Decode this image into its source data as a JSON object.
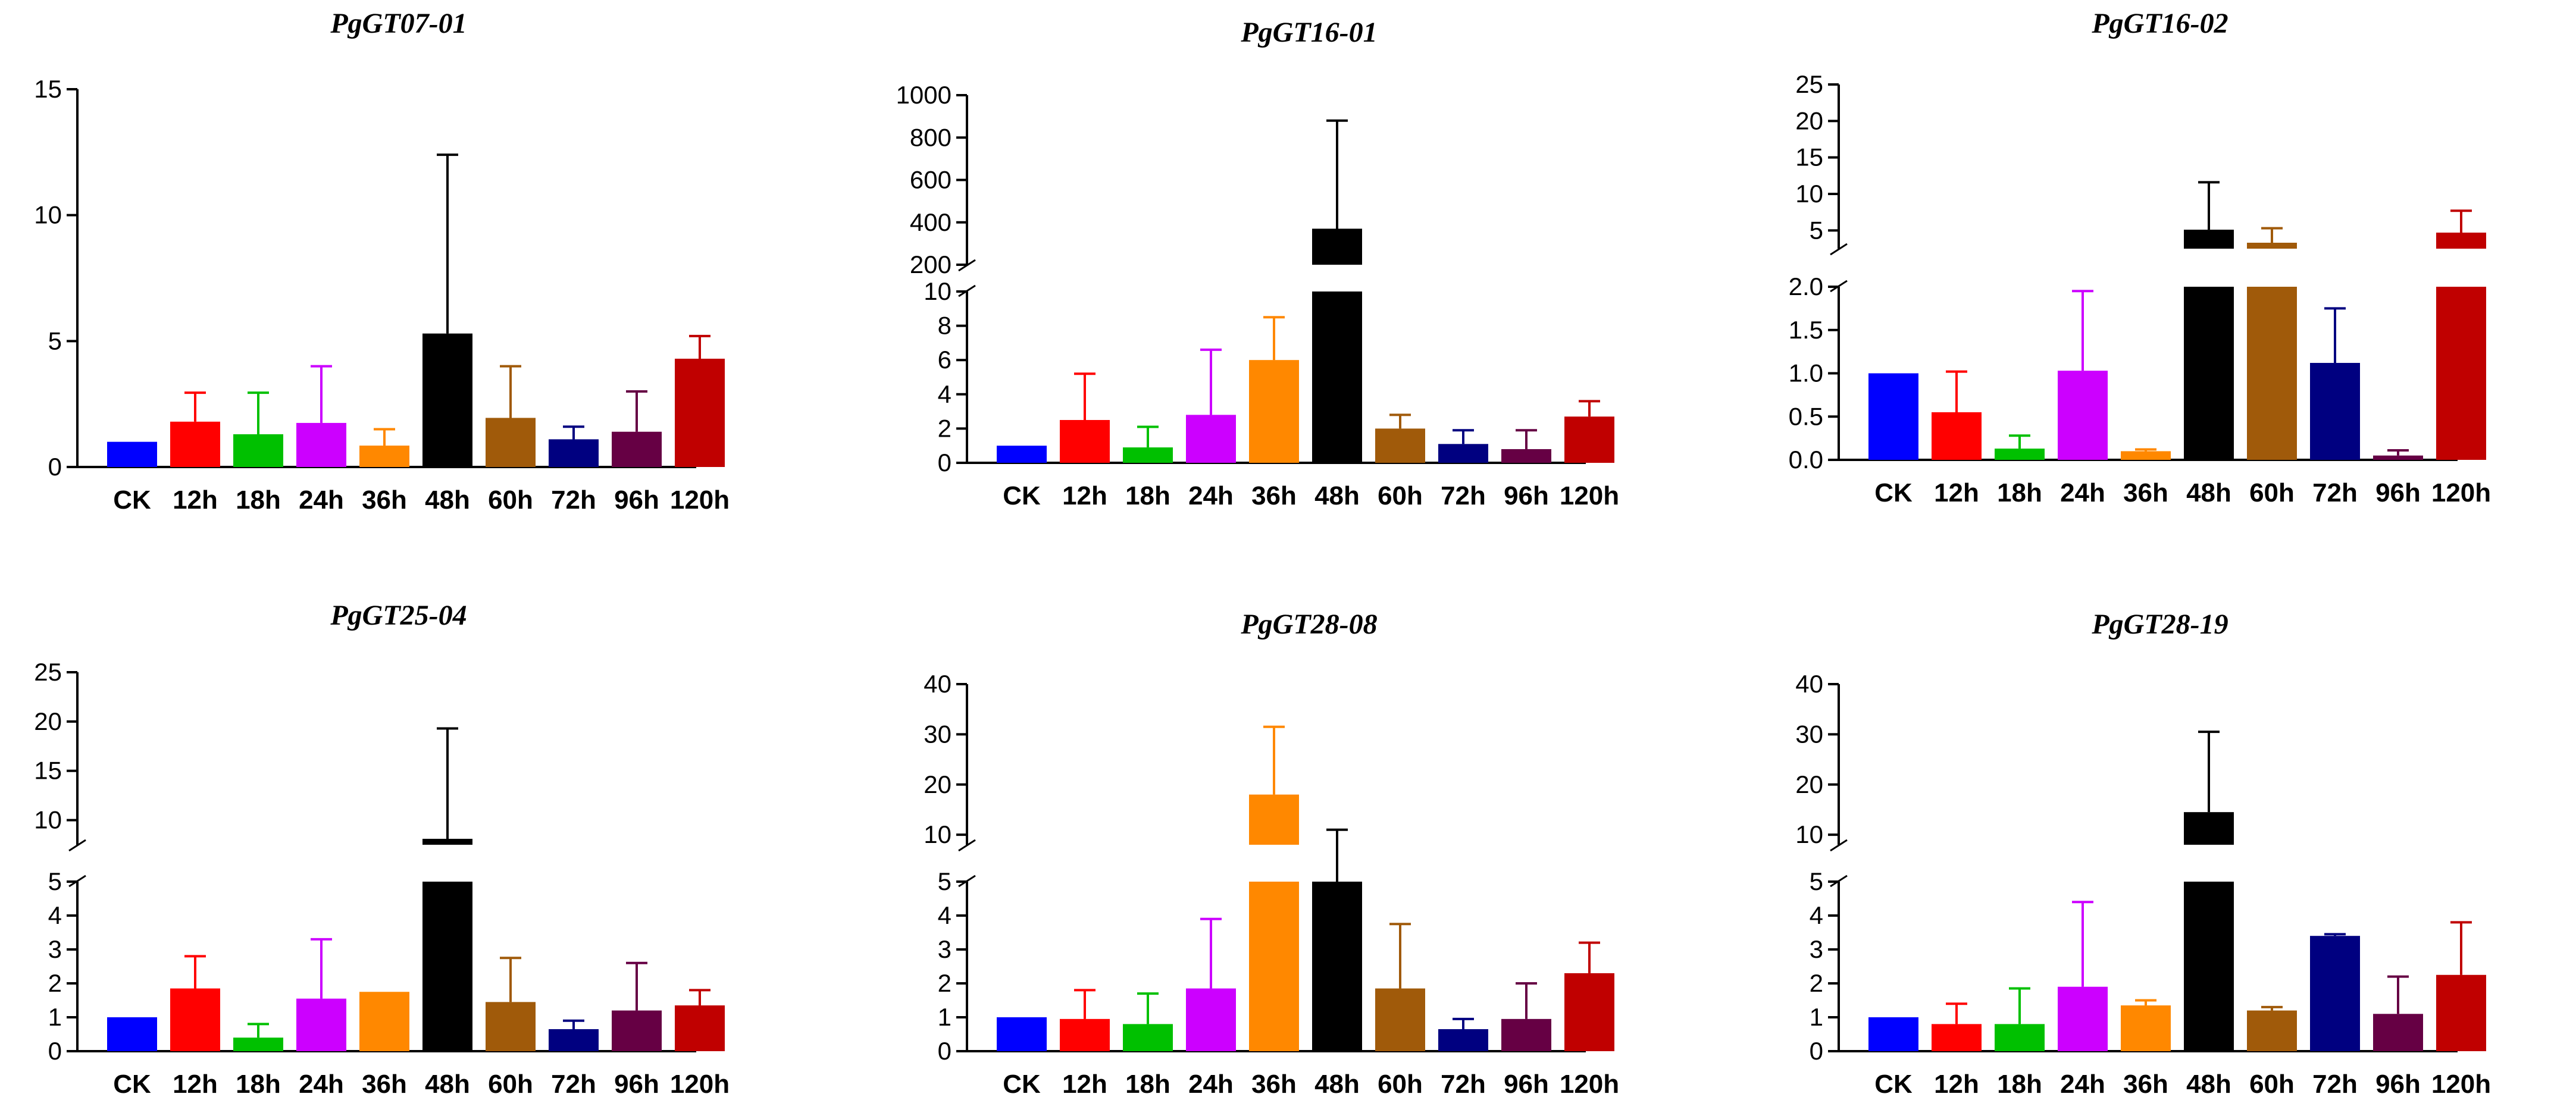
{
  "charts": [
    {
      "chart_data": {
        "type": "bar",
        "title": "PgGT07-01",
        "categories": [
          "CK",
          "12h",
          "18h",
          "24h",
          "36h",
          "48h",
          "60h",
          "72h",
          "96h",
          "120h"
        ],
        "values": [
          1.0,
          1.8,
          1.3,
          1.75,
          0.85,
          5.3,
          1.95,
          1.1,
          1.4,
          4.3
        ],
        "errors": [
          0,
          1.15,
          1.65,
          2.25,
          0.65,
          7.1,
          2.05,
          0.5,
          1.6,
          0.9
        ],
        "colors": [
          "#0000ff",
          "#ff0000",
          "#00c000",
          "#cc00ff",
          "#ff8800",
          "#000000",
          "#a05a0a",
          "#000080",
          "#660044",
          "#c00000"
        ],
        "xlabel": "",
        "ylabel": "",
        "segments": [
          {
            "range": [
              0,
              15
            ],
            "ticks": [
              0,
              5,
              10,
              15
            ],
            "labels": [
              "0",
              "5",
              "10",
              "15"
            ]
          }
        ]
      }
    },
    {
      "chart_data": {
        "type": "bar",
        "title": "PgGT16-01",
        "categories": [
          "CK",
          "12h",
          "18h",
          "24h",
          "36h",
          "48h",
          "60h",
          "72h",
          "96h",
          "120h"
        ],
        "values": [
          1.0,
          2.5,
          0.9,
          2.8,
          6.0,
          370,
          2.0,
          1.1,
          0.8,
          2.7
        ],
        "errors": [
          0,
          2.7,
          1.2,
          3.8,
          2.5,
          510,
          0.8,
          0.8,
          1.1,
          0.9
        ],
        "colors": [
          "#0000ff",
          "#ff0000",
          "#00c000",
          "#cc00ff",
          "#ff8800",
          "#000000",
          "#a05a0a",
          "#000080",
          "#660044",
          "#c00000"
        ],
        "xlabel": "",
        "ylabel": "",
        "segments": [
          {
            "range": [
              0,
              10
            ],
            "ticks": [
              0,
              2,
              4,
              6,
              8,
              10
            ],
            "labels": [
              "0",
              "2",
              "4",
              "6",
              "8",
              "10"
            ]
          },
          {
            "range": [
              200,
              1000
            ],
            "ticks": [
              200,
              400,
              600,
              800,
              1000
            ],
            "labels": [
              "200",
              "400",
              "600",
              "800",
              "1000"
            ]
          }
        ]
      }
    },
    {
      "chart_data": {
        "type": "bar",
        "title": "PgGT16-02",
        "categories": [
          "CK",
          "12h",
          "18h",
          "24h",
          "36h",
          "48h",
          "60h",
          "72h",
          "96h",
          "120h"
        ],
        "values": [
          1.0,
          0.55,
          0.13,
          1.03,
          0.1,
          5.1,
          3.3,
          1.12,
          0.05,
          4.7
        ],
        "errors": [
          0,
          0.47,
          0.15,
          0.92,
          0.02,
          6.5,
          2.0,
          0.63,
          0.06,
          3.0
        ],
        "colors": [
          "#0000ff",
          "#ff0000",
          "#00c000",
          "#cc00ff",
          "#ff8800",
          "#000000",
          "#a05a0a",
          "#000080",
          "#660044",
          "#c00000"
        ],
        "xlabel": "",
        "ylabel": "",
        "segments": [
          {
            "range": [
              0,
              2
            ],
            "ticks": [
              0,
              0.5,
              1,
              1.5,
              2
            ],
            "labels": [
              "0.0",
              "0.5",
              "1.0",
              "1.5",
              "2.0"
            ]
          },
          {
            "range": [
              2.5,
              25
            ],
            "ticks": [
              5,
              10,
              15,
              20,
              25
            ],
            "labels": [
              "5",
              "10",
              "15",
              "20",
              "25"
            ]
          }
        ]
      }
    },
    {
      "chart_data": {
        "type": "bar",
        "title": "PgGT25-04",
        "categories": [
          "CK",
          "12h",
          "18h",
          "24h",
          "36h",
          "48h",
          "60h",
          "72h",
          "96h",
          "120h"
        ],
        "values": [
          1.0,
          1.85,
          0.4,
          1.55,
          1.75,
          8.0,
          1.45,
          0.65,
          1.2,
          1.35
        ],
        "errors": [
          0,
          0.95,
          0.4,
          1.75,
          0,
          11.3,
          1.3,
          0.25,
          1.4,
          0.45
        ],
        "colors": [
          "#0000ff",
          "#ff0000",
          "#00c000",
          "#cc00ff",
          "#ff8800",
          "#000000",
          "#a05a0a",
          "#000080",
          "#660044",
          "#c00000"
        ],
        "xlabel": "",
        "ylabel": "",
        "segments": [
          {
            "range": [
              0,
              5
            ],
            "ticks": [
              0,
              1,
              2,
              3,
              4,
              5
            ],
            "labels": [
              "0",
              "1",
              "2",
              "3",
              "4",
              "5"
            ]
          },
          {
            "range": [
              7.5,
              25
            ],
            "ticks": [
              10,
              15,
              20,
              25
            ],
            "labels": [
              "10",
              "15",
              "20",
              "25"
            ]
          }
        ]
      }
    },
    {
      "chart_data": {
        "type": "bar",
        "title": "PgGT28-08",
        "categories": [
          "CK",
          "12h",
          "18h",
          "24h",
          "36h",
          "48h",
          "60h",
          "72h",
          "96h",
          "120h"
        ],
        "values": [
          1.0,
          0.95,
          0.8,
          1.85,
          18.0,
          5.0,
          1.85,
          0.65,
          0.95,
          2.3
        ],
        "errors": [
          0,
          0.85,
          0.9,
          2.05,
          13.5,
          6.0,
          1.9,
          0.3,
          1.05,
          0.9
        ],
        "colors": [
          "#0000ff",
          "#ff0000",
          "#00c000",
          "#cc00ff",
          "#ff8800",
          "#000000",
          "#a05a0a",
          "#000080",
          "#660044",
          "#c00000"
        ],
        "xlabel": "",
        "ylabel": "",
        "segments": [
          {
            "range": [
              0,
              5
            ],
            "ticks": [
              0,
              1,
              2,
              3,
              4,
              5
            ],
            "labels": [
              "0",
              "1",
              "2",
              "3",
              "4",
              "5"
            ]
          },
          {
            "range": [
              8,
              40
            ],
            "ticks": [
              10,
              20,
              30,
              40
            ],
            "labels": [
              "10",
              "20",
              "30",
              "40"
            ]
          }
        ]
      }
    },
    {
      "chart_data": {
        "type": "bar",
        "title": "PgGT28-19",
        "categories": [
          "CK",
          "12h",
          "18h",
          "24h",
          "36h",
          "48h",
          "60h",
          "72h",
          "96h",
          "120h"
        ],
        "values": [
          1.0,
          0.8,
          0.8,
          1.9,
          1.35,
          14.5,
          1.2,
          3.4,
          1.1,
          2.25
        ],
        "errors": [
          0,
          0.6,
          1.05,
          2.5,
          0.15,
          16.0,
          0.1,
          0.05,
          1.1,
          1.55
        ],
        "colors": [
          "#0000ff",
          "#ff0000",
          "#00c000",
          "#cc00ff",
          "#ff8800",
          "#000000",
          "#a05a0a",
          "#000080",
          "#660044",
          "#c00000"
        ],
        "xlabel": "",
        "ylabel": "",
        "segments": [
          {
            "range": [
              0,
              5
            ],
            "ticks": [
              0,
              1,
              2,
              3,
              4,
              5
            ],
            "labels": [
              "0",
              "1",
              "2",
              "3",
              "4",
              "5"
            ]
          },
          {
            "range": [
              8,
              40
            ],
            "ticks": [
              10,
              20,
              30,
              40
            ],
            "labels": [
              "10",
              "20",
              "30",
              "40"
            ]
          }
        ]
      }
    }
  ]
}
